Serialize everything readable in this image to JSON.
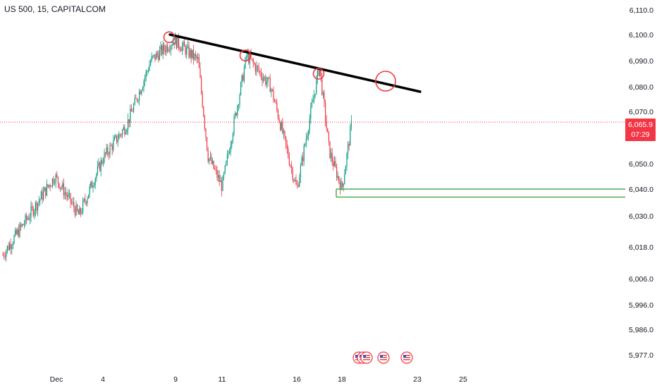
{
  "header": {
    "title": "US 500, 15, CAPITALCOM"
  },
  "last_price": {
    "value": "6,065.9",
    "countdown": "07:29"
  },
  "colors": {
    "up": "#089981",
    "down": "#f23645",
    "trendline": "#000000",
    "support": "#4caf50",
    "marker": "#f23645"
  },
  "chart_data": {
    "type": "candlestick",
    "title": "US 500, 15, CAPITALCOM",
    "y_ticks": [
      "6,110.0",
      "6,100.0",
      "6,090.0",
      "6,080.0",
      "6,070.0",
      "6,050.0",
      "6,040.0",
      "6,030.0",
      "6,018.0",
      "6,006.0",
      "5,996.0",
      "5,986.0",
      "5,977.0"
    ],
    "y_tick_values": [
      6110,
      6100,
      6090,
      6080,
      6070,
      6050,
      6040,
      6030,
      6018,
      6006,
      5996,
      5986,
      5977
    ],
    "x_ticks": [
      "Dec",
      "4",
      "9",
      "11",
      "16",
      "18",
      "23",
      "25"
    ],
    "price_path": [
      {
        "x": "Nov 29",
        "y": 6015
      },
      {
        "x": "Dec 2",
        "y": 6045
      },
      {
        "x": "Dec 3",
        "y": 6030
      },
      {
        "x": "Dec 4",
        "y": 6052
      },
      {
        "x": "Dec 5",
        "y": 6065
      },
      {
        "x": "Dec 6",
        "y": 6090
      },
      {
        "x": "Dec 9",
        "y": 6098
      },
      {
        "x": "Dec 10",
        "y": 6090
      },
      {
        "x": "Dec 10",
        "y": 6053
      },
      {
        "x": "Dec 11",
        "y": 6041
      },
      {
        "x": "Dec 12",
        "y": 6092
      },
      {
        "x": "Dec 13",
        "y": 6080
      },
      {
        "x": "Dec 16",
        "y": 6040
      },
      {
        "x": "Dec 17",
        "y": 6088
      },
      {
        "x": "Dec 17",
        "y": 6055
      },
      {
        "x": "Dec 18",
        "y": 6040
      },
      {
        "x": "Dec 18",
        "y": 6065.9
      }
    ],
    "trendline": {
      "from": {
        "x": "Dec 9",
        "y": 6100
      },
      "to": {
        "x": "Dec 23",
        "y": 6078
      }
    },
    "trendline_touches": [
      {
        "x": "Dec 9",
        "y": 6099
      },
      {
        "x": "Dec 12",
        "y": 6092
      },
      {
        "x": "Dec 17",
        "y": 6085
      }
    ],
    "projected_touch": {
      "x": "Dec 20",
      "y": 6080
    },
    "support_zone": {
      "upper": 6040,
      "lower": 6037,
      "start_x": "Dec 18"
    },
    "last_price": 6065.9
  },
  "events": {
    "count": 5
  }
}
